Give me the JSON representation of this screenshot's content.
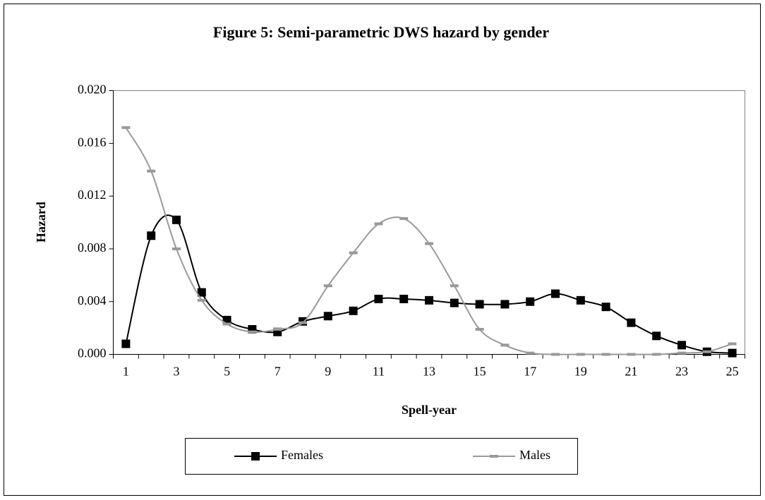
{
  "chart_data": {
    "type": "line",
    "title": "Figure 5: Semi-parametric DWS hazard by gender",
    "x_label": "Spell-year",
    "y_label": "Hazard",
    "categories": [
      "1",
      null,
      "3",
      null,
      "5",
      null,
      "7",
      null,
      "9",
      null,
      "11",
      null,
      "13",
      null,
      "15",
      null,
      "17",
      null,
      "19",
      null,
      "21",
      null,
      "23",
      null,
      "25"
    ],
    "series": [
      {
        "name": "Females",
        "color": "#000000",
        "marker": "square",
        "values": [
          0.0008,
          0.009,
          0.0102,
          0.0047,
          0.0026,
          0.0019,
          0.0017,
          0.0025,
          0.0029,
          0.0033,
          0.0042,
          0.0042,
          0.0041,
          0.0039,
          0.0038,
          0.0038,
          0.004,
          0.0046,
          0.0041,
          0.0036,
          0.0024,
          0.0014,
          0.0007,
          0.0002,
          0.0001
        ]
      },
      {
        "name": "Males",
        "color": "#999999",
        "marker": "dash",
        "values": [
          0.0172,
          0.0139,
          0.008,
          0.0041,
          0.0023,
          0.0017,
          0.0019,
          0.0024,
          0.0052,
          0.0077,
          0.0099,
          0.0103,
          0.0084,
          0.0052,
          0.0019,
          0.0007,
          0.0001,
          0,
          0,
          0,
          0,
          0,
          0.0001,
          0.0002,
          0.0008
        ]
      }
    ],
    "ylim": [
      0,
      0.02
    ],
    "yticks": [
      {
        "value": 0,
        "label": "0.000"
      },
      {
        "value": 0.004,
        "label": "0.004"
      },
      {
        "value": 0.008,
        "label": "0.008"
      },
      {
        "value": 0.012,
        "label": "0.012"
      },
      {
        "value": 0.016,
        "label": "0.016"
      },
      {
        "value": 0.02,
        "label": "0.020"
      }
    ],
    "legend": "bottom"
  }
}
